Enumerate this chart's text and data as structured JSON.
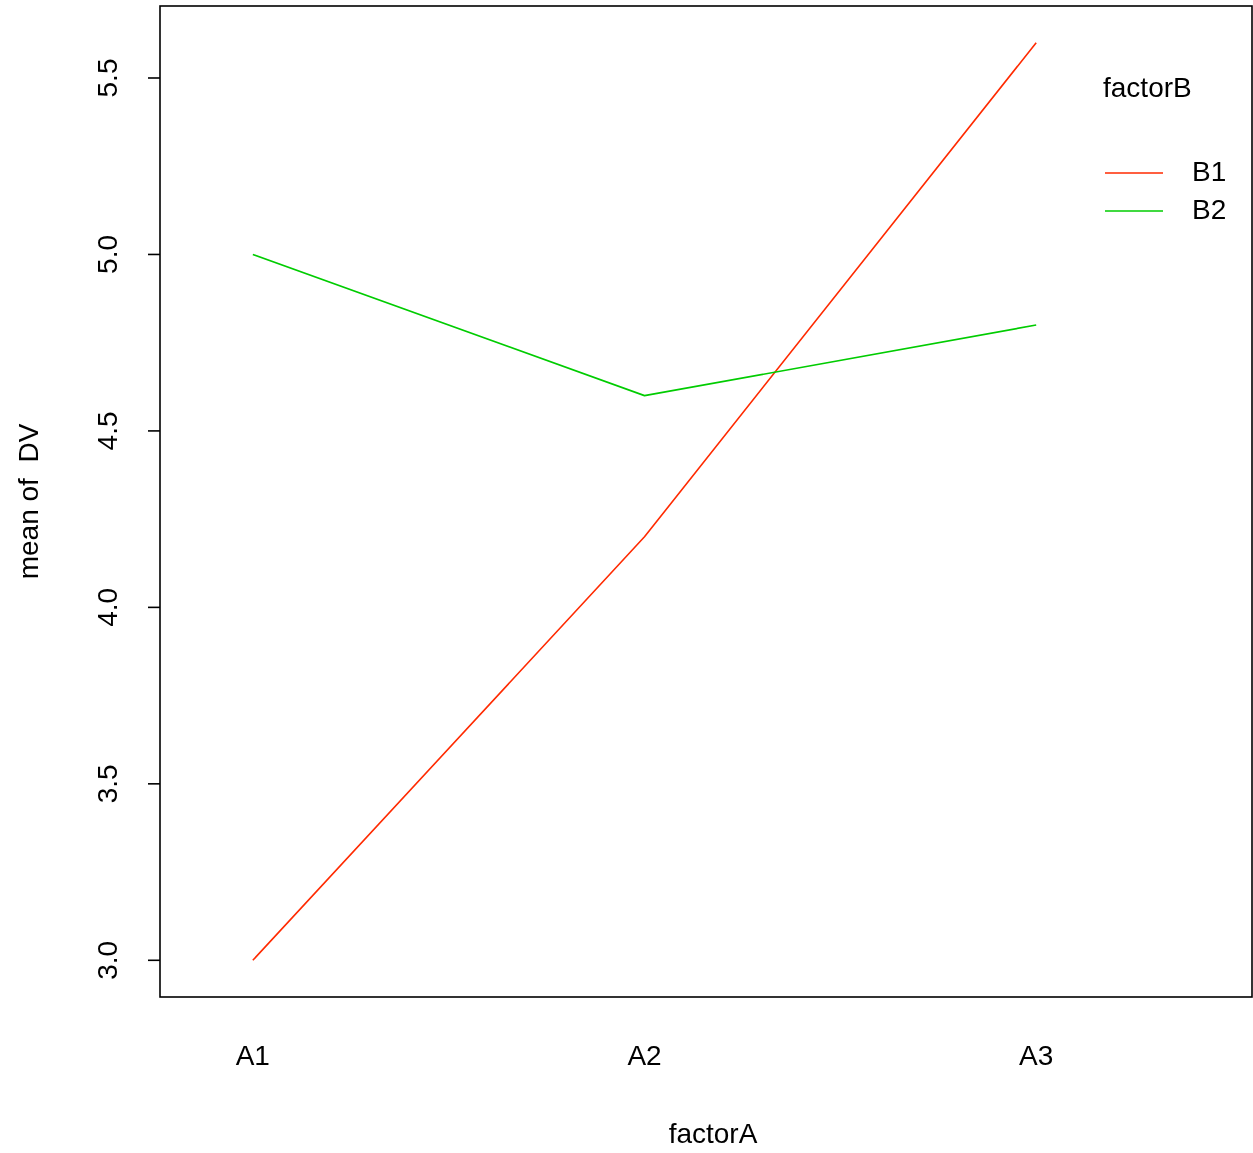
{
  "chart_data": {
    "type": "line",
    "xlabel": "factorA",
    "ylabel": "mean of  DV",
    "legend_title": "factorB",
    "categories": [
      "A1",
      "A2",
      "A3"
    ],
    "series": [
      {
        "name": "B1",
        "color": "#ff2a00",
        "values": [
          3.0,
          4.2,
          5.6
        ]
      },
      {
        "name": "B2",
        "color": "#00cc00",
        "values": [
          5.0,
          4.6,
          4.8
        ]
      }
    ],
    "ylim": [
      2.896,
      5.704
    ],
    "yticks": [
      {
        "value": 3.0,
        "label": "3.0"
      },
      {
        "value": 3.5,
        "label": "3.5"
      },
      {
        "value": 4.0,
        "label": "4.0"
      },
      {
        "value": 4.5,
        "label": "4.5"
      },
      {
        "value": 5.0,
        "label": "5.0"
      },
      {
        "value": 5.5,
        "label": "5.5"
      }
    ],
    "grid": false,
    "legend": "top right",
    "marker": "none",
    "line_style": "solid"
  }
}
